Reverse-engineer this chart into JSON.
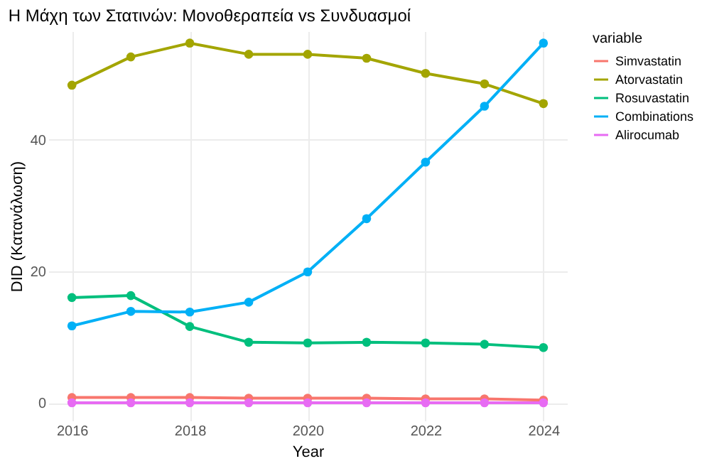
{
  "chart_data": {
    "type": "line",
    "title": "Η Μάχη των Στατινών: Μονοθεραπεία vs Συνδυασμοί",
    "xlabel": "Year",
    "ylabel": "DID (Κατανάλωση)",
    "legend_title": "variable",
    "legend": "right",
    "grid": true,
    "marker": "circle",
    "line_style": "solid",
    "x": [
      2016,
      2017,
      2018,
      2019,
      2020,
      2021,
      2022,
      2023,
      2024
    ],
    "xlim": [
      2015.6,
      2024.4
    ],
    "xticks": [
      2016,
      2018,
      2020,
      2022,
      2024
    ],
    "ylim": [
      -2.7,
      56.5
    ],
    "yticks": [
      0,
      20,
      40
    ],
    "series": [
      {
        "name": "Simvastatin",
        "color": "#f8766d",
        "values": [
          0.8,
          0.8,
          0.8,
          0.7,
          0.7,
          0.7,
          0.6,
          0.6,
          0.4
        ]
      },
      {
        "name": "Atorvastatin",
        "color": "#a3a500",
        "values": [
          48.3,
          52.6,
          54.7,
          53.0,
          53.0,
          52.4,
          50.1,
          48.5,
          45.5
        ]
      },
      {
        "name": "Rosuvastatin",
        "color": "#00bf7d",
        "values": [
          16.0,
          16.3,
          11.6,
          9.2,
          9.1,
          9.2,
          9.1,
          8.9,
          8.4
        ]
      },
      {
        "name": "Combinations",
        "color": "#00b0f6",
        "values": [
          11.7,
          13.9,
          13.8,
          15.3,
          19.9,
          28.0,
          36.6,
          45.1,
          54.7
        ]
      },
      {
        "name": "Alirocumab",
        "color": "#e76bf3",
        "values": [
          0,
          0,
          0,
          0,
          0,
          0,
          0,
          0,
          0
        ]
      }
    ]
  }
}
